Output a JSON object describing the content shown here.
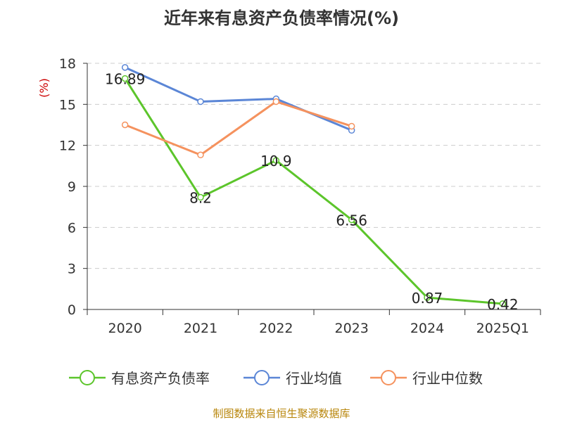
{
  "title": "近年来有息资产负债率情况(%)",
  "source": "制图数据来自恒生聚源数据库",
  "chart_data": {
    "type": "line",
    "title": "近年来有息资产负债率情况(%)",
    "ylabel": "(%)",
    "xlabel": "",
    "categories": [
      "2020",
      "2021",
      "2022",
      "2023",
      "2024",
      "2025Q1"
    ],
    "ylim": [
      0,
      18
    ],
    "yticks": [
      0,
      3,
      6,
      9,
      12,
      15,
      18
    ],
    "grid": "horizontal-dashed",
    "legend": "bottom",
    "series": [
      {
        "name": "有息资产负债率",
        "color": "#5cc52b",
        "values": [
          16.89,
          8.2,
          10.9,
          6.56,
          0.87,
          0.42
        ],
        "labels": [
          "16.89",
          "8.2",
          "10.9",
          "6.56",
          "0.87",
          "0.42"
        ]
      },
      {
        "name": "行业均值",
        "color": "#5b86d6",
        "values": [
          17.7,
          15.2,
          15.4,
          13.1,
          null,
          null
        ]
      },
      {
        "name": "行业中位数",
        "color": "#f5925e",
        "values": [
          13.5,
          11.3,
          15.2,
          13.4,
          null,
          null
        ]
      }
    ]
  }
}
